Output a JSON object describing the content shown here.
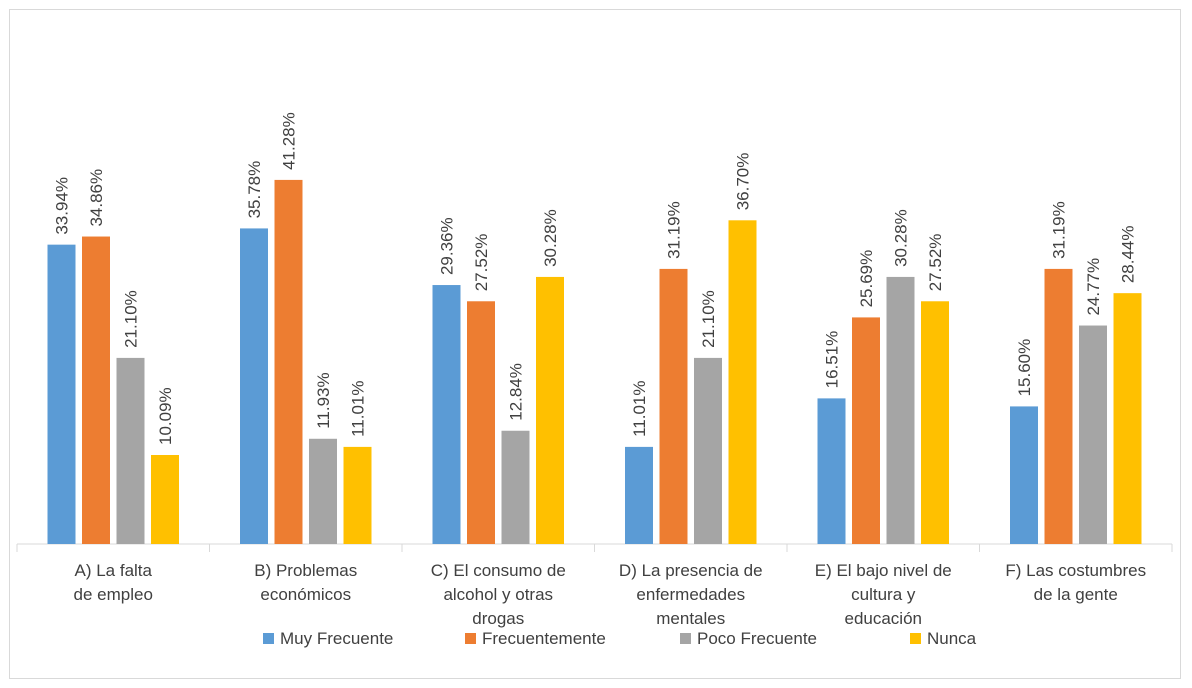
{
  "chart_data": {
    "type": "bar",
    "categories": [
      [
        "A) La falta",
        "de empleo"
      ],
      [
        "B) Problemas",
        "económicos"
      ],
      [
        "C) El consumo de",
        "alcohol y otras",
        "drogas"
      ],
      [
        "D) La presencia de",
        "enfermedades",
        "mentales"
      ],
      [
        "E) El bajo nivel de",
        "cultura y",
        "educación"
      ],
      [
        "F) Las costumbres",
        "de la gente"
      ]
    ],
    "series": [
      {
        "name": "Muy Frecuente",
        "color": "#5b9bd5",
        "values": [
          33.94,
          35.78,
          29.36,
          11.01,
          16.51,
          15.6
        ],
        "labels": [
          "33.94%",
          "35.78%",
          "29.36%",
          "11.01%",
          "16.51%",
          "15.60%"
        ]
      },
      {
        "name": "Frecuentemente",
        "color": "#ed7d31",
        "values": [
          34.86,
          41.28,
          27.52,
          31.19,
          25.69,
          31.19
        ],
        "labels": [
          "34.86%",
          "41.28%",
          "27.52%",
          "31.19%",
          "25.69%",
          "31.19%"
        ]
      },
      {
        "name": "Poco Frecuente",
        "color": "#a5a5a5",
        "values": [
          21.1,
          11.93,
          12.84,
          21.1,
          30.28,
          24.77
        ],
        "labels": [
          "21.10%",
          "11.93%",
          "12.84%",
          "21.10%",
          "30.28%",
          "24.77%"
        ]
      },
      {
        "name": "Nunca",
        "color": "#ffc000",
        "values": [
          10.09,
          11.01,
          30.28,
          36.7,
          27.52,
          28.44
        ],
        "labels": [
          "10.09%",
          "11.01%",
          "30.28%",
          "36.70%",
          "27.52%",
          "28.44%"
        ]
      }
    ],
    "ylim": [
      0,
      45
    ],
    "grid": false,
    "legend_position": "bottom"
  }
}
